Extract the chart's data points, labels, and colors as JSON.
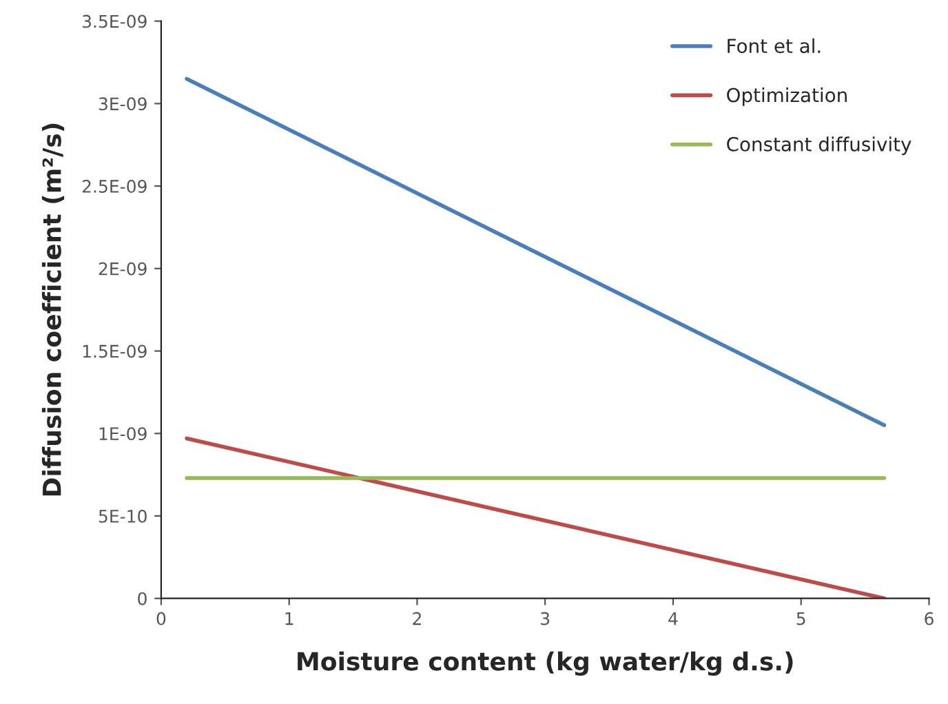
{
  "chart_data": {
    "type": "line",
    "xlabel": "Moisture content (kg water/kg d.s.)",
    "ylabel": "Diffusion coefficient (m²/s)",
    "xlim": [
      0,
      6
    ],
    "xticks": [
      0,
      1,
      2,
      3,
      4,
      5,
      6
    ],
    "ylim": [
      0,
      3.5e-09
    ],
    "yticks": [
      {
        "value": 0,
        "label": "0"
      },
      {
        "value": 5e-10,
        "label": "5E-10"
      },
      {
        "value": 1e-09,
        "label": "1E-09"
      },
      {
        "value": 1.5e-09,
        "label": "1.5E-09"
      },
      {
        "value": 2e-09,
        "label": "2E-09"
      },
      {
        "value": 2.5e-09,
        "label": "2.5E-09"
      },
      {
        "value": 3e-09,
        "label": "3E-09"
      },
      {
        "value": 3.5e-09,
        "label": "3.5E-09"
      }
    ],
    "grid": false,
    "legend": "top right",
    "marker": "none",
    "line_style": "solid",
    "x": [
      0.2,
      5.65
    ],
    "series": [
      {
        "name": "Font et al.",
        "color": "#4a7ebb",
        "values": [
          3.15e-09,
          1.05e-09
        ]
      },
      {
        "name": "Optimization",
        "color": "#be4b48",
        "values": [
          9.7e-10,
          0
        ]
      },
      {
        "name": "Constant diffusivity",
        "color": "#98b954",
        "values": [
          7.3e-10,
          7.3e-10
        ]
      }
    ]
  }
}
